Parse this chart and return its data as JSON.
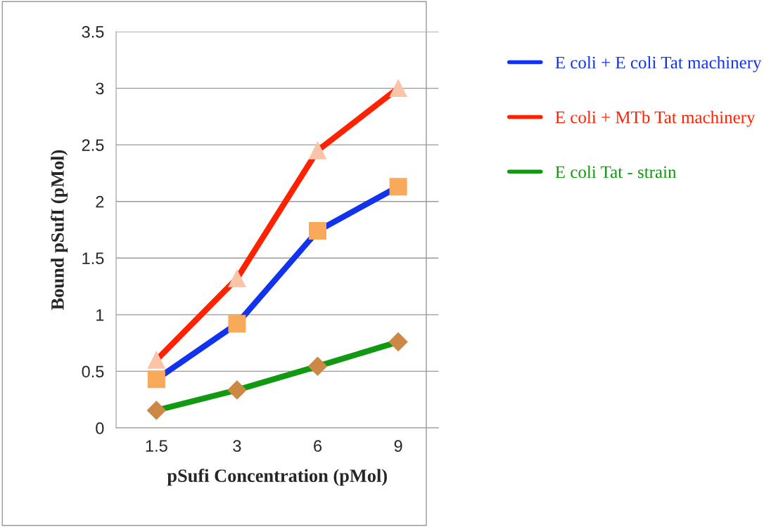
{
  "chart_data": {
    "type": "line",
    "xlabel": "pSufi Concentration (pMol)",
    "ylabel": "Bound pSufI (pMol)",
    "categories": [
      "1.5",
      "3",
      "6",
      "9"
    ],
    "series": [
      {
        "name": "E coli + E coli Tat machinery",
        "color": "#1133ee",
        "marker": "square",
        "colors": [
          "#f9a95a",
          "#f9a95a",
          "#f9a95a",
          "#f9a95a"
        ],
        "values": [
          0.43,
          0.92,
          1.74,
          2.13
        ]
      },
      {
        "name": "E coli + MTb Tat machinery",
        "color": "#ff2200",
        "marker": "triangle",
        "colors": [
          "#f9c4a8",
          "#f9c4a8",
          "#f9c4a8",
          "#f9c4a8"
        ],
        "values": [
          0.6,
          1.32,
          2.45,
          3.0
        ]
      },
      {
        "name": "E coli Tat - strain",
        "color": "#119911",
        "marker": "diamond",
        "colors": [
          "#cc8844",
          "#cc8844",
          "#cc8844",
          "#cc8844"
        ],
        "values": [
          0.155,
          0.335,
          0.545,
          0.76
        ]
      }
    ],
    "ylim": [
      0,
      3.5
    ],
    "yticks": [
      0,
      0.5,
      1,
      1.5,
      2,
      2.5,
      3,
      3.5
    ],
    "grid": "y",
    "legend": "right"
  }
}
